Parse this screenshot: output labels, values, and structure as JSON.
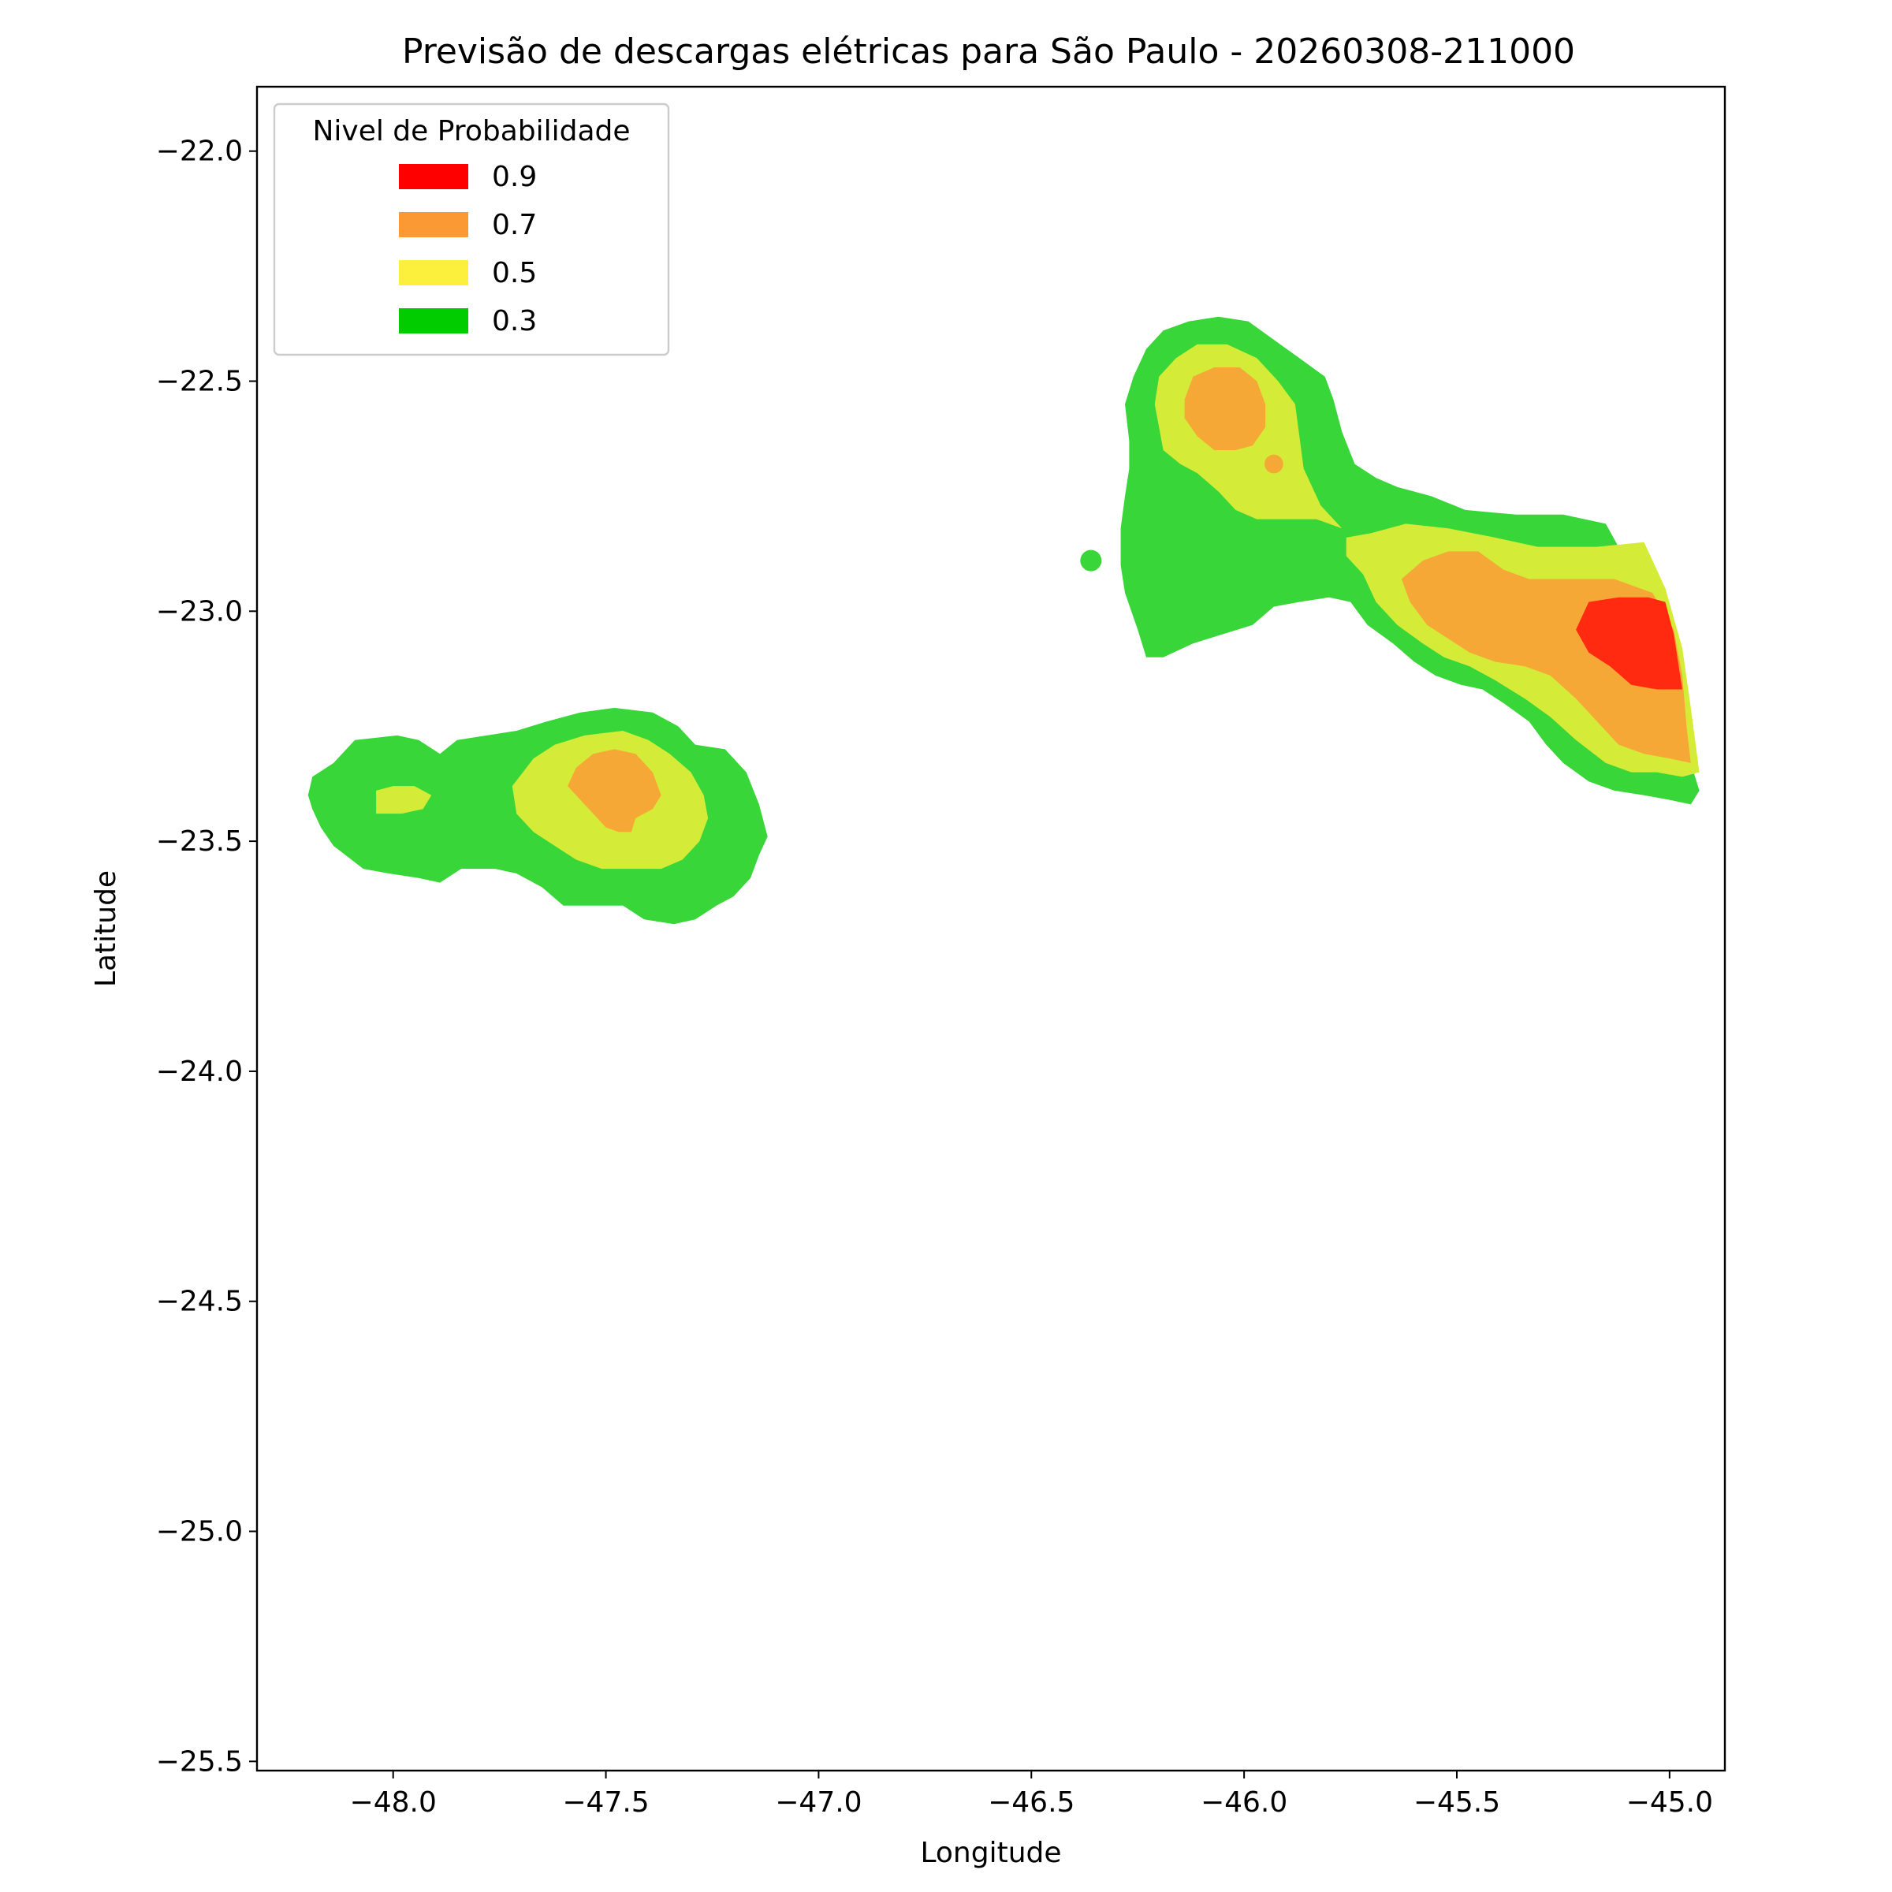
{
  "chart_data": {
    "type": "contour",
    "title": "Previsão de descargas elétricas para São Paulo - 20260308-211000",
    "xlabel": "Longitude",
    "ylabel": "Latitude",
    "xlim": [
      -48.32,
      -44.87
    ],
    "ylim": [
      -25.52,
      -21.86
    ],
    "x_ticks": [
      {
        "value": -48.0,
        "label": "−48.0"
      },
      {
        "value": -47.5,
        "label": "−47.5"
      },
      {
        "value": -47.0,
        "label": "−47.0"
      },
      {
        "value": -46.5,
        "label": "−46.5"
      },
      {
        "value": -46.0,
        "label": "−46.0"
      },
      {
        "value": -45.5,
        "label": "−45.5"
      },
      {
        "value": -45.0,
        "label": "−45.0"
      }
    ],
    "y_ticks": [
      {
        "value": -22.0,
        "label": "−22.0"
      },
      {
        "value": -22.5,
        "label": "−22.5"
      },
      {
        "value": -23.0,
        "label": "−23.0"
      },
      {
        "value": -23.5,
        "label": "−23.5"
      },
      {
        "value": -24.0,
        "label": "−24.0"
      },
      {
        "value": -24.5,
        "label": "−24.5"
      },
      {
        "value": -25.0,
        "label": "−25.0"
      },
      {
        "value": -25.5,
        "label": "−25.5"
      }
    ],
    "grid": false,
    "legend": {
      "title": "Nivel de Probabilidade",
      "placement": "top-left",
      "entries": [
        {
          "label": "0.9",
          "color": "#ff0000"
        },
        {
          "label": "0.7",
          "color": "#fb9a35"
        },
        {
          "label": "0.5",
          "color": "#fcf03c"
        },
        {
          "label": "0.3",
          "color": "#00cc00"
        }
      ]
    },
    "level_fill_colors": {
      "0.3": "#38d638",
      "0.5": "#d4ec38",
      "0.7": "#f6a836",
      "0.9": "#ff2a10"
    },
    "regions": [
      {
        "id": "west-03",
        "level": "0.3",
        "polygon": [
          [
            -48.19,
            -23.36
          ],
          [
            -48.14,
            -23.33
          ],
          [
            -48.09,
            -23.28
          ],
          [
            -47.99,
            -23.27
          ],
          [
            -47.94,
            -23.28
          ],
          [
            -47.89,
            -23.31
          ],
          [
            -47.85,
            -23.28
          ],
          [
            -47.78,
            -23.27
          ],
          [
            -47.71,
            -23.26
          ],
          [
            -47.64,
            -23.24
          ],
          [
            -47.56,
            -23.22
          ],
          [
            -47.48,
            -23.21
          ],
          [
            -47.39,
            -23.22
          ],
          [
            -47.33,
            -23.25
          ],
          [
            -47.29,
            -23.29
          ],
          [
            -47.22,
            -23.3
          ],
          [
            -47.17,
            -23.35
          ],
          [
            -47.14,
            -23.42
          ],
          [
            -47.12,
            -23.49
          ],
          [
            -47.14,
            -23.53
          ],
          [
            -47.16,
            -23.58
          ],
          [
            -47.2,
            -23.62
          ],
          [
            -47.24,
            -23.64
          ],
          [
            -47.29,
            -23.67
          ],
          [
            -47.34,
            -23.68
          ],
          [
            -47.41,
            -23.67
          ],
          [
            -47.46,
            -23.64
          ],
          [
            -47.53,
            -23.64
          ],
          [
            -47.6,
            -23.64
          ],
          [
            -47.65,
            -23.6
          ],
          [
            -47.71,
            -23.57
          ],
          [
            -47.76,
            -23.56
          ],
          [
            -47.84,
            -23.56
          ],
          [
            -47.89,
            -23.59
          ],
          [
            -47.94,
            -23.58
          ],
          [
            -48.01,
            -23.57
          ],
          [
            -48.07,
            -23.56
          ],
          [
            -48.14,
            -23.51
          ],
          [
            -48.17,
            -23.47
          ],
          [
            -48.19,
            -23.43
          ],
          [
            -48.2,
            -23.4
          ]
        ]
      },
      {
        "id": "northeast-03",
        "level": "0.3",
        "polygon": [
          [
            -46.27,
            -22.63
          ],
          [
            -46.28,
            -22.55
          ],
          [
            -46.26,
            -22.49
          ],
          [
            -46.23,
            -22.43
          ],
          [
            -46.19,
            -22.39
          ],
          [
            -46.13,
            -22.37
          ],
          [
            -46.06,
            -22.36
          ],
          [
            -45.99,
            -22.37
          ],
          [
            -45.93,
            -22.41
          ],
          [
            -45.87,
            -22.45
          ],
          [
            -45.81,
            -22.49
          ],
          [
            -45.79,
            -22.54
          ],
          [
            -45.77,
            -22.61
          ],
          [
            -45.74,
            -22.68
          ],
          [
            -45.69,
            -22.71
          ],
          [
            -45.64,
            -22.73
          ],
          [
            -45.56,
            -22.75
          ],
          [
            -45.48,
            -22.78
          ],
          [
            -45.36,
            -22.79
          ],
          [
            -45.25,
            -22.79
          ],
          [
            -45.15,
            -22.81
          ],
          [
            -45.12,
            -22.86
          ],
          [
            -45.09,
            -22.93
          ],
          [
            -45.05,
            -23.0
          ],
          [
            -45.0,
            -23.08
          ],
          [
            -44.97,
            -23.17
          ],
          [
            -44.96,
            -23.25
          ],
          [
            -44.95,
            -23.33
          ],
          [
            -44.93,
            -23.39
          ],
          [
            -44.95,
            -23.42
          ],
          [
            -45.0,
            -23.41
          ],
          [
            -45.06,
            -23.4
          ],
          [
            -45.13,
            -23.39
          ],
          [
            -45.19,
            -23.37
          ],
          [
            -45.25,
            -23.33
          ],
          [
            -45.29,
            -23.29
          ],
          [
            -45.33,
            -23.24
          ],
          [
            -45.39,
            -23.2
          ],
          [
            -45.44,
            -23.17
          ],
          [
            -45.49,
            -23.16
          ],
          [
            -45.55,
            -23.14
          ],
          [
            -45.6,
            -23.11
          ],
          [
            -45.65,
            -23.07
          ],
          [
            -45.71,
            -23.03
          ],
          [
            -45.75,
            -22.98
          ],
          [
            -45.8,
            -22.97
          ],
          [
            -45.87,
            -22.98
          ],
          [
            -45.93,
            -22.99
          ],
          [
            -45.98,
            -23.03
          ],
          [
            -46.05,
            -23.05
          ],
          [
            -46.12,
            -23.07
          ],
          [
            -46.19,
            -23.1
          ],
          [
            -46.23,
            -23.1
          ],
          [
            -46.25,
            -23.04
          ],
          [
            -46.28,
            -22.96
          ],
          [
            -46.29,
            -22.9
          ],
          [
            -46.29,
            -22.82
          ],
          [
            -46.28,
            -22.75
          ],
          [
            -46.27,
            -22.69
          ]
        ]
      },
      {
        "id": "isolated-point-03",
        "level": "0.3",
        "circle": [
          -46.36,
          -22.89,
          0.025
        ]
      },
      {
        "id": "west-left-05",
        "level": "0.5",
        "polygon": [
          [
            -48.04,
            -23.39
          ],
          [
            -48.0,
            -23.38
          ],
          [
            -47.95,
            -23.38
          ],
          [
            -47.91,
            -23.4
          ],
          [
            -47.93,
            -23.43
          ],
          [
            -47.98,
            -23.44
          ],
          [
            -48.04,
            -23.44
          ]
        ]
      },
      {
        "id": "west-main-05",
        "level": "0.5",
        "polygon": [
          [
            -47.72,
            -23.38
          ],
          [
            -47.67,
            -23.32
          ],
          [
            -47.62,
            -23.29
          ],
          [
            -47.55,
            -23.27
          ],
          [
            -47.46,
            -23.26
          ],
          [
            -47.4,
            -23.28
          ],
          [
            -47.35,
            -23.31
          ],
          [
            -47.3,
            -23.35
          ],
          [
            -47.27,
            -23.4
          ],
          [
            -47.26,
            -23.45
          ],
          [
            -47.28,
            -23.5
          ],
          [
            -47.32,
            -23.54
          ],
          [
            -47.37,
            -23.56
          ],
          [
            -47.44,
            -23.56
          ],
          [
            -47.51,
            -23.56
          ],
          [
            -47.57,
            -23.54
          ],
          [
            -47.62,
            -23.51
          ],
          [
            -47.67,
            -23.48
          ],
          [
            -47.71,
            -23.44
          ]
        ]
      },
      {
        "id": "northeast-north-05",
        "level": "0.5",
        "polygon": [
          [
            -46.21,
            -22.55
          ],
          [
            -46.2,
            -22.49
          ],
          [
            -46.16,
            -22.45
          ],
          [
            -46.11,
            -22.42
          ],
          [
            -46.04,
            -22.42
          ],
          [
            -45.97,
            -22.45
          ],
          [
            -45.92,
            -22.5
          ],
          [
            -45.88,
            -22.55
          ],
          [
            -45.87,
            -22.62
          ],
          [
            -45.86,
            -22.69
          ],
          [
            -45.82,
            -22.77
          ],
          [
            -45.77,
            -22.82
          ],
          [
            -45.83,
            -22.8
          ],
          [
            -45.88,
            -22.8
          ],
          [
            -45.92,
            -22.8
          ],
          [
            -45.97,
            -22.8
          ],
          [
            -46.02,
            -22.78
          ],
          [
            -46.06,
            -22.74
          ],
          [
            -46.11,
            -22.7
          ],
          [
            -46.15,
            -22.68
          ],
          [
            -46.19,
            -22.65
          ]
        ]
      },
      {
        "id": "northeast-east-05",
        "level": "0.5",
        "polygon": [
          [
            -45.76,
            -22.84
          ],
          [
            -45.7,
            -22.83
          ],
          [
            -45.62,
            -22.81
          ],
          [
            -45.52,
            -22.82
          ],
          [
            -45.41,
            -22.84
          ],
          [
            -45.31,
            -22.86
          ],
          [
            -45.17,
            -22.86
          ],
          [
            -45.06,
            -22.85
          ],
          [
            -45.01,
            -22.95
          ],
          [
            -44.97,
            -23.08
          ],
          [
            -44.95,
            -23.21
          ],
          [
            -44.93,
            -23.35
          ],
          [
            -44.97,
            -23.36
          ],
          [
            -45.03,
            -23.35
          ],
          [
            -45.09,
            -23.35
          ],
          [
            -45.15,
            -23.33
          ],
          [
            -45.22,
            -23.28
          ],
          [
            -45.28,
            -23.23
          ],
          [
            -45.34,
            -23.19
          ],
          [
            -45.41,
            -23.15
          ],
          [
            -45.47,
            -23.12
          ],
          [
            -45.53,
            -23.1
          ],
          [
            -45.58,
            -23.07
          ],
          [
            -45.64,
            -23.03
          ],
          [
            -45.69,
            -22.98
          ],
          [
            -45.72,
            -22.92
          ],
          [
            -45.76,
            -22.88
          ]
        ]
      },
      {
        "id": "west-07",
        "level": "0.7",
        "polygon": [
          [
            -47.57,
            -23.34
          ],
          [
            -47.53,
            -23.31
          ],
          [
            -47.48,
            -23.3
          ],
          [
            -47.43,
            -23.31
          ],
          [
            -47.39,
            -23.35
          ],
          [
            -47.37,
            -23.4
          ],
          [
            -47.39,
            -23.43
          ],
          [
            -47.43,
            -23.45
          ],
          [
            -47.44,
            -23.48
          ],
          [
            -47.47,
            -23.48
          ],
          [
            -47.5,
            -23.47
          ],
          [
            -47.53,
            -23.44
          ],
          [
            -47.56,
            -23.41
          ],
          [
            -47.59,
            -23.38
          ]
        ]
      },
      {
        "id": "northeast-north-07",
        "level": "0.7",
        "polygon": [
          [
            -46.14,
            -22.54
          ],
          [
            -46.12,
            -22.49
          ],
          [
            -46.07,
            -22.47
          ],
          [
            -46.01,
            -22.47
          ],
          [
            -45.97,
            -22.5
          ],
          [
            -45.95,
            -22.55
          ],
          [
            -45.95,
            -22.6
          ],
          [
            -45.98,
            -22.64
          ],
          [
            -46.02,
            -22.65
          ],
          [
            -46.07,
            -22.65
          ],
          [
            -46.11,
            -22.62
          ],
          [
            -46.14,
            -22.58
          ]
        ]
      },
      {
        "id": "northeast-dot-07",
        "level": "0.7",
        "circle": [
          -45.93,
          -22.68,
          0.022
        ]
      },
      {
        "id": "northeast-east-07",
        "level": "0.7",
        "polygon": [
          [
            -45.63,
            -22.93
          ],
          [
            -45.58,
            -22.89
          ],
          [
            -45.52,
            -22.87
          ],
          [
            -45.45,
            -22.87
          ],
          [
            -45.39,
            -22.91
          ],
          [
            -45.33,
            -22.93
          ],
          [
            -45.25,
            -22.93
          ],
          [
            -45.13,
            -22.93
          ],
          [
            -45.04,
            -22.96
          ],
          [
            -44.99,
            -23.04
          ],
          [
            -44.97,
            -23.14
          ],
          [
            -44.96,
            -23.25
          ],
          [
            -44.95,
            -23.33
          ],
          [
            -45.0,
            -23.32
          ],
          [
            -45.06,
            -23.31
          ],
          [
            -45.12,
            -23.29
          ],
          [
            -45.17,
            -23.24
          ],
          [
            -45.22,
            -23.19
          ],
          [
            -45.28,
            -23.14
          ],
          [
            -45.34,
            -23.12
          ],
          [
            -45.41,
            -23.11
          ],
          [
            -45.47,
            -23.09
          ],
          [
            -45.52,
            -23.06
          ],
          [
            -45.57,
            -23.03
          ],
          [
            -45.61,
            -22.98
          ]
        ]
      },
      {
        "id": "northeast-east-09",
        "level": "0.9",
        "polygon": [
          [
            -45.22,
            -23.04
          ],
          [
            -45.19,
            -22.98
          ],
          [
            -45.12,
            -22.97
          ],
          [
            -45.05,
            -22.97
          ],
          [
            -45.01,
            -22.98
          ],
          [
            -44.99,
            -23.05
          ],
          [
            -44.98,
            -23.11
          ],
          [
            -44.97,
            -23.17
          ],
          [
            -45.03,
            -23.17
          ],
          [
            -45.09,
            -23.16
          ],
          [
            -45.14,
            -23.12
          ],
          [
            -45.19,
            -23.09
          ]
        ]
      }
    ]
  }
}
